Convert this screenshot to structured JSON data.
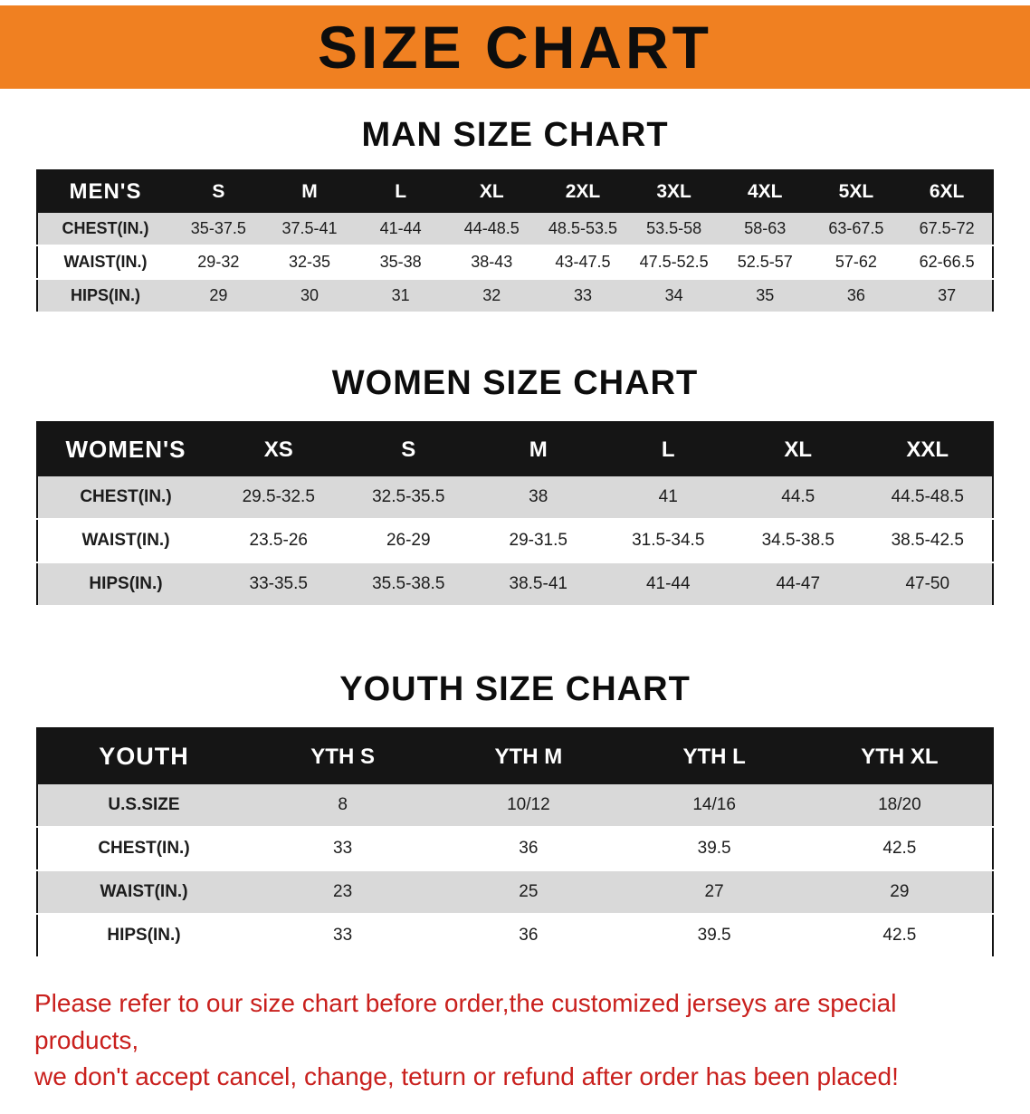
{
  "banner": {
    "title": "SIZE CHART"
  },
  "sections": [
    {
      "heading": "MAN SIZE CHART",
      "table": {
        "header": [
          "MEN'S",
          "S",
          "M",
          "L",
          "XL",
          "2XL",
          "3XL",
          "4XL",
          "5XL",
          "6XL"
        ],
        "rows": [
          [
            "CHEST(IN.)",
            "35-37.5",
            "37.5-41",
            "41-44",
            "44-48.5",
            "48.5-53.5",
            "53.5-58",
            "58-63",
            "63-67.5",
            "67.5-72"
          ],
          [
            "WAIST(IN.)",
            "29-32",
            "32-35",
            "35-38",
            "38-43",
            "43-47.5",
            "47.5-52.5",
            "52.5-57",
            "57-62",
            "62-66.5"
          ],
          [
            "HIPS(IN.)",
            "29",
            "30",
            "31",
            "32",
            "33",
            "34",
            "35",
            "36",
            "37"
          ]
        ]
      }
    },
    {
      "heading": "WOMEN SIZE CHART",
      "table": {
        "header": [
          "WOMEN'S",
          "XS",
          "S",
          "M",
          "L",
          "XL",
          "XXL"
        ],
        "rows": [
          [
            "CHEST(IN.)",
            "29.5-32.5",
            "32.5-35.5",
            "38",
            "41",
            "44.5",
            "44.5-48.5"
          ],
          [
            "WAIST(IN.)",
            "23.5-26",
            "26-29",
            "29-31.5",
            "31.5-34.5",
            "34.5-38.5",
            "38.5-42.5"
          ],
          [
            "HIPS(IN.)",
            "33-35.5",
            "35.5-38.5",
            "38.5-41",
            "41-44",
            "44-47",
            "47-50"
          ]
        ]
      }
    },
    {
      "heading": "YOUTH SIZE CHART",
      "table": {
        "header": [
          "YOUTH",
          "YTH S",
          "YTH M",
          "YTH L",
          "YTH XL"
        ],
        "rows": [
          [
            "U.S.SIZE",
            "8",
            "10/12",
            "14/16",
            "18/20"
          ],
          [
            "CHEST(IN.)",
            "33",
            "36",
            "39.5",
            "42.5"
          ],
          [
            "WAIST(IN.)",
            "23",
            "25",
            "27",
            "29"
          ],
          [
            "HIPS(IN.)",
            "33",
            "36",
            "39.5",
            "42.5"
          ]
        ]
      }
    }
  ],
  "disclaimer": {
    "line1": "Please refer to our size chart before order,the customized jerseys are special products,",
    "line2": "we don't accept cancel, change, teturn or refund after order has been placed!"
  },
  "colors": {
    "banner_bg": "#f08021",
    "table_header_bg": "#151515",
    "row_alt_bg": "#d9d9d9",
    "disclaimer_red": "#c9201d"
  }
}
